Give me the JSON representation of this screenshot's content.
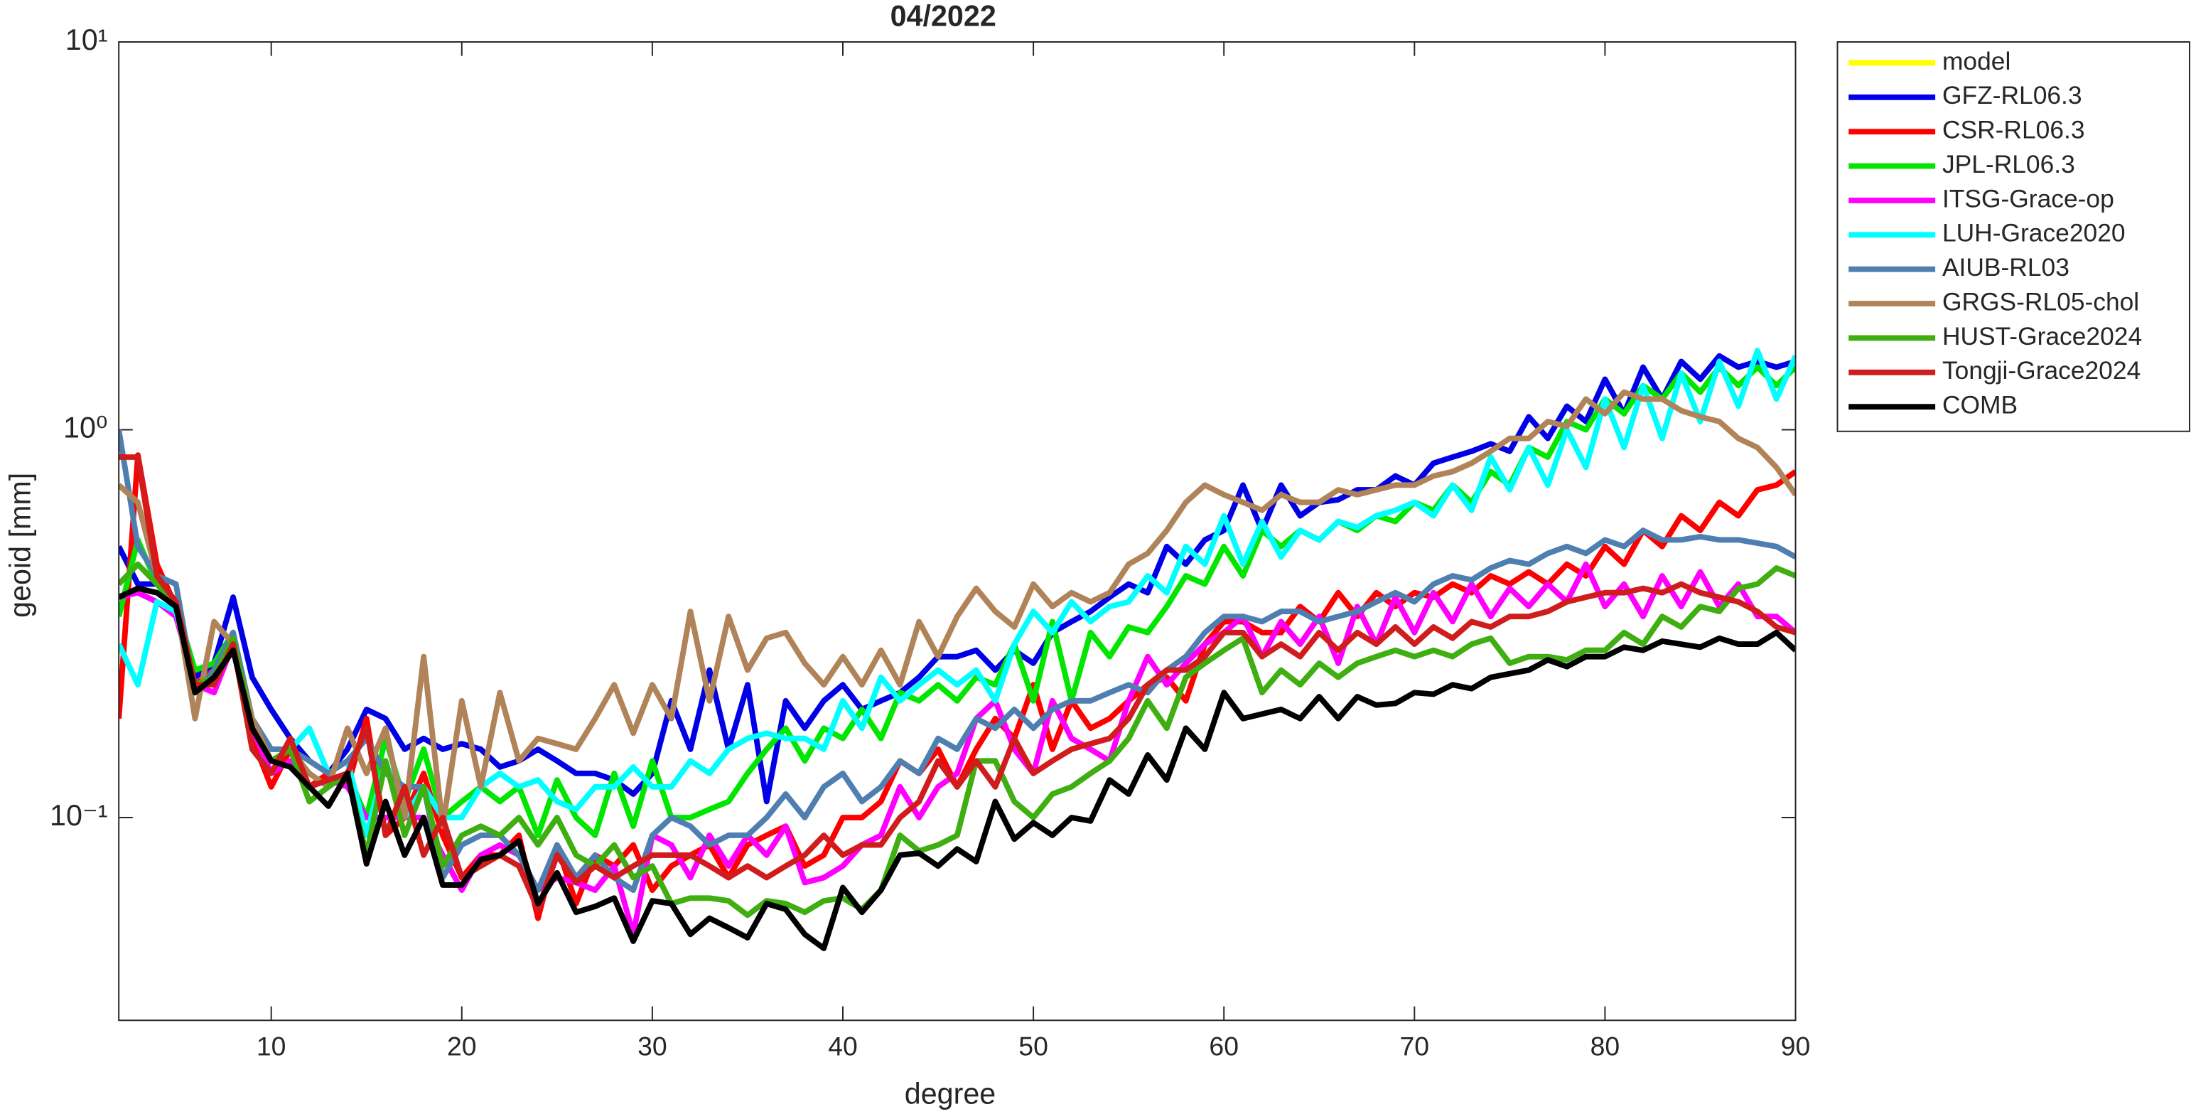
{
  "chart_data": {
    "type": "line",
    "title": "04/2022",
    "xlabel": "degree",
    "ylabel": "geoid [mm]",
    "yscale": "log",
    "legend": "northeastoutside",
    "grid": false,
    "xlim": [
      2,
      90
    ],
    "xticks": [
      10,
      20,
      30,
      40,
      50,
      60,
      70,
      80,
      90
    ],
    "ylim": [
      0.03,
      10
    ],
    "yticks": [
      {
        "value": 0.1,
        "label": "10⁻¹"
      },
      {
        "value": 1,
        "label": "10⁰"
      },
      {
        "value": 10,
        "label": "10¹"
      }
    ],
    "x": [
      2,
      3,
      4,
      5,
      6,
      7,
      8,
      9,
      10,
      11,
      12,
      13,
      14,
      15,
      16,
      17,
      18,
      19,
      20,
      21,
      22,
      23,
      24,
      25,
      26,
      27,
      28,
      29,
      30,
      31,
      32,
      33,
      34,
      35,
      36,
      37,
      38,
      39,
      40,
      41,
      42,
      43,
      44,
      45,
      46,
      47,
      48,
      49,
      50,
      51,
      52,
      53,
      54,
      55,
      56,
      57,
      58,
      59,
      60,
      61,
      62,
      63,
      64,
      65,
      66,
      67,
      68,
      69,
      70,
      71,
      72,
      73,
      74,
      75,
      76,
      77,
      78,
      79,
      80,
      81,
      82,
      83,
      84,
      85,
      86,
      87,
      88,
      89,
      90
    ],
    "series": [
      {
        "name": "model",
        "color": "#ffff00",
        "values": [
          null,
          null,
          null,
          null,
          null,
          null,
          null,
          null,
          null,
          null,
          null,
          null,
          null,
          null,
          null,
          null,
          null,
          null,
          null,
          null,
          null,
          null,
          null,
          null,
          null,
          null,
          null,
          null,
          null,
          null,
          null,
          null,
          null,
          null,
          null,
          null,
          null,
          null,
          null,
          null,
          null,
          null,
          null,
          null,
          null,
          null,
          null,
          null,
          null,
          null,
          null,
          null,
          null,
          null,
          null,
          null,
          null,
          null,
          null,
          null,
          null,
          null,
          null,
          null,
          null,
          null,
          null,
          null,
          null,
          null,
          null,
          null,
          null,
          null,
          null,
          null,
          null,
          null,
          null,
          null,
          null,
          null,
          null,
          null,
          null,
          null,
          null,
          null,
          null
        ]
      },
      {
        "name": "GFZ-RL06.3",
        "color": "#0000e6",
        "values": [
          0.5,
          0.4,
          0.4,
          0.36,
          0.23,
          0.25,
          0.37,
          0.23,
          0.19,
          0.16,
          0.14,
          0.13,
          0.15,
          0.19,
          0.18,
          0.15,
          0.16,
          0.15,
          0.155,
          0.15,
          0.135,
          0.14,
          0.15,
          0.14,
          0.13,
          0.13,
          0.125,
          0.115,
          0.13,
          0.2,
          0.15,
          0.24,
          0.15,
          0.22,
          0.11,
          0.2,
          0.17,
          0.2,
          0.22,
          0.19,
          0.2,
          0.21,
          0.23,
          0.26,
          0.26,
          0.27,
          0.24,
          0.27,
          0.25,
          0.3,
          0.32,
          0.34,
          0.37,
          0.4,
          0.38,
          0.5,
          0.45,
          0.52,
          0.55,
          0.72,
          0.55,
          0.72,
          0.6,
          0.65,
          0.66,
          0.7,
          0.7,
          0.76,
          0.72,
          0.82,
          0.85,
          0.88,
          0.92,
          0.88,
          1.08,
          0.95,
          1.15,
          1.05,
          1.35,
          1.1,
          1.45,
          1.2,
          1.5,
          1.35,
          1.55,
          1.45,
          1.5,
          1.45,
          1.5
        ]
      },
      {
        "name": "CSR-RL06.3",
        "color": "#ff0000",
        "values": [
          0.18,
          0.86,
          0.45,
          0.35,
          0.22,
          0.24,
          0.28,
          0.16,
          0.12,
          0.15,
          0.12,
          0.13,
          0.12,
          0.18,
          0.09,
          0.1,
          0.13,
          0.09,
          0.07,
          0.08,
          0.08,
          0.09,
          0.055,
          0.085,
          0.06,
          0.08,
          0.075,
          0.085,
          0.065,
          0.075,
          0.08,
          0.085,
          0.07,
          0.085,
          0.09,
          0.095,
          0.075,
          0.08,
          0.1,
          0.1,
          0.11,
          0.14,
          0.13,
          0.15,
          0.12,
          0.15,
          0.18,
          0.16,
          0.22,
          0.15,
          0.2,
          0.17,
          0.18,
          0.2,
          0.22,
          0.23,
          0.2,
          0.28,
          0.32,
          0.32,
          0.3,
          0.3,
          0.35,
          0.32,
          0.38,
          0.33,
          0.38,
          0.35,
          0.38,
          0.37,
          0.4,
          0.38,
          0.42,
          0.4,
          0.43,
          0.4,
          0.45,
          0.42,
          0.5,
          0.45,
          0.55,
          0.5,
          0.6,
          0.55,
          0.65,
          0.6,
          0.7,
          0.72,
          0.78
        ]
      },
      {
        "name": "JPL-RL06.3",
        "color": "#00e600",
        "values": [
          0.33,
          0.52,
          0.4,
          0.35,
          0.24,
          0.25,
          0.3,
          0.17,
          0.14,
          0.15,
          0.11,
          0.12,
          0.13,
          0.1,
          0.16,
          0.11,
          0.15,
          0.1,
          0.11,
          0.12,
          0.11,
          0.12,
          0.09,
          0.125,
          0.1,
          0.09,
          0.13,
          0.095,
          0.14,
          0.1,
          0.1,
          0.105,
          0.11,
          0.13,
          0.15,
          0.17,
          0.14,
          0.17,
          0.16,
          0.19,
          0.16,
          0.21,
          0.2,
          0.22,
          0.2,
          0.23,
          0.22,
          0.28,
          0.2,
          0.32,
          0.2,
          0.3,
          0.26,
          0.31,
          0.3,
          0.35,
          0.42,
          0.4,
          0.5,
          0.42,
          0.55,
          0.5,
          0.55,
          0.52,
          0.58,
          0.55,
          0.6,
          0.58,
          0.65,
          0.62,
          0.72,
          0.65,
          0.78,
          0.72,
          0.9,
          0.85,
          1.05,
          1.0,
          1.2,
          1.1,
          1.3,
          1.2,
          1.4,
          1.25,
          1.45,
          1.3,
          1.45,
          1.3,
          1.45
        ]
      },
      {
        "name": "ITSG-Grace-op",
        "color": "#ff00ff",
        "values": [
          0.37,
          0.38,
          0.36,
          0.33,
          0.22,
          0.21,
          0.28,
          0.17,
          0.13,
          0.14,
          0.12,
          0.125,
          0.12,
          0.1,
          0.1,
          0.1,
          0.1,
          0.08,
          0.065,
          0.08,
          0.085,
          0.08,
          0.065,
          0.07,
          0.068,
          0.065,
          0.075,
          0.05,
          0.09,
          0.085,
          0.07,
          0.09,
          0.075,
          0.09,
          0.08,
          0.095,
          0.068,
          0.07,
          0.075,
          0.085,
          0.09,
          0.12,
          0.1,
          0.12,
          0.13,
          0.18,
          0.2,
          0.15,
          0.13,
          0.2,
          0.16,
          0.15,
          0.14,
          0.2,
          0.26,
          0.22,
          0.25,
          0.28,
          0.3,
          0.33,
          0.26,
          0.32,
          0.28,
          0.33,
          0.25,
          0.35,
          0.28,
          0.37,
          0.3,
          0.38,
          0.32,
          0.4,
          0.33,
          0.39,
          0.35,
          0.4,
          0.36,
          0.45,
          0.35,
          0.4,
          0.33,
          0.42,
          0.35,
          0.43,
          0.35,
          0.4,
          0.33,
          0.33,
          0.3
        ]
      },
      {
        "name": "LUH-Grace2020",
        "color": "#00ffff",
        "values": [
          0.28,
          0.22,
          0.36,
          0.34,
          0.22,
          0.22,
          0.28,
          0.17,
          0.15,
          0.15,
          0.17,
          0.13,
          0.14,
          0.09,
          0.14,
          0.1,
          0.12,
          0.1,
          0.1,
          0.12,
          0.13,
          0.12,
          0.125,
          0.11,
          0.105,
          0.12,
          0.12,
          0.135,
          0.12,
          0.12,
          0.14,
          0.13,
          0.15,
          0.16,
          0.165,
          0.16,
          0.16,
          0.15,
          0.2,
          0.17,
          0.23,
          0.2,
          0.22,
          0.24,
          0.22,
          0.24,
          0.2,
          0.28,
          0.34,
          0.3,
          0.36,
          0.32,
          0.35,
          0.36,
          0.42,
          0.38,
          0.5,
          0.45,
          0.6,
          0.45,
          0.58,
          0.47,
          0.55,
          0.52,
          0.58,
          0.56,
          0.6,
          0.62,
          0.65,
          0.6,
          0.72,
          0.62,
          0.85,
          0.7,
          0.9,
          0.72,
          1.0,
          0.8,
          1.2,
          0.9,
          1.3,
          0.95,
          1.4,
          1.05,
          1.5,
          1.15,
          1.6,
          1.2,
          1.55
        ]
      },
      {
        "name": "AIUB-RL03",
        "color": "#4f7fb0",
        "values": [
          1.0,
          0.5,
          0.42,
          0.4,
          0.21,
          0.24,
          0.3,
          0.18,
          0.15,
          0.15,
          0.14,
          0.13,
          0.14,
          0.16,
          0.13,
          0.12,
          0.12,
          0.07,
          0.085,
          0.09,
          0.09,
          0.08,
          0.065,
          0.085,
          0.07,
          0.08,
          0.07,
          0.065,
          0.09,
          0.1,
          0.095,
          0.085,
          0.09,
          0.09,
          0.1,
          0.115,
          0.1,
          0.12,
          0.13,
          0.11,
          0.12,
          0.14,
          0.13,
          0.16,
          0.15,
          0.18,
          0.17,
          0.19,
          0.17,
          0.19,
          0.2,
          0.2,
          0.21,
          0.22,
          0.21,
          0.24,
          0.26,
          0.3,
          0.33,
          0.33,
          0.32,
          0.34,
          0.34,
          0.32,
          0.33,
          0.34,
          0.36,
          0.38,
          0.36,
          0.4,
          0.42,
          0.41,
          0.44,
          0.46,
          0.45,
          0.48,
          0.5,
          0.48,
          0.52,
          0.5,
          0.55,
          0.52,
          0.52,
          0.53,
          0.52,
          0.52,
          0.51,
          0.5,
          0.47
        ]
      },
      {
        "name": "GRGS-RL05-chol",
        "color": "#b08358",
        "values": [
          0.72,
          0.65,
          0.42,
          0.36,
          0.18,
          0.32,
          0.28,
          0.18,
          0.14,
          0.15,
          0.13,
          0.12,
          0.17,
          0.13,
          0.17,
          0.1,
          0.26,
          0.095,
          0.2,
          0.12,
          0.21,
          0.14,
          0.16,
          0.155,
          0.15,
          0.18,
          0.22,
          0.165,
          0.22,
          0.18,
          0.34,
          0.2,
          0.33,
          0.24,
          0.29,
          0.3,
          0.25,
          0.22,
          0.26,
          0.22,
          0.27,
          0.22,
          0.32,
          0.26,
          0.33,
          0.39,
          0.34,
          0.31,
          0.4,
          0.35,
          0.38,
          0.36,
          0.38,
          0.45,
          0.48,
          0.55,
          0.65,
          0.72,
          0.68,
          0.65,
          0.62,
          0.68,
          0.65,
          0.65,
          0.7,
          0.68,
          0.7,
          0.72,
          0.72,
          0.76,
          0.78,
          0.82,
          0.88,
          0.95,
          0.95,
          1.05,
          1.02,
          1.2,
          1.1,
          1.25,
          1.2,
          1.2,
          1.12,
          1.08,
          1.05,
          0.95,
          0.9,
          0.8,
          0.68
        ]
      },
      {
        "name": "HUST-Grace2024",
        "color": "#3fae11",
        "values": [
          0.4,
          0.45,
          0.4,
          0.36,
          0.22,
          0.23,
          0.29,
          0.17,
          0.14,
          0.15,
          0.11,
          0.12,
          0.13,
          0.08,
          0.14,
          0.09,
          0.12,
          0.075,
          0.09,
          0.095,
          0.09,
          0.1,
          0.085,
          0.1,
          0.08,
          0.075,
          0.085,
          0.07,
          0.075,
          0.06,
          0.062,
          0.062,
          0.061,
          0.056,
          0.061,
          0.06,
          0.057,
          0.061,
          0.062,
          0.058,
          0.065,
          0.09,
          0.082,
          0.085,
          0.09,
          0.14,
          0.14,
          0.11,
          0.1,
          0.115,
          0.12,
          0.13,
          0.14,
          0.16,
          0.2,
          0.17,
          0.23,
          0.25,
          0.27,
          0.29,
          0.21,
          0.24,
          0.22,
          0.25,
          0.23,
          0.25,
          0.26,
          0.27,
          0.26,
          0.27,
          0.26,
          0.28,
          0.29,
          0.25,
          0.26,
          0.26,
          0.255,
          0.27,
          0.27,
          0.3,
          0.28,
          0.33,
          0.31,
          0.35,
          0.34,
          0.39,
          0.4,
          0.44,
          0.42
        ]
      },
      {
        "name": "Tongji-Grace2024",
        "color": "#d01c1c",
        "values": [
          0.85,
          0.85,
          0.42,
          0.36,
          0.22,
          0.22,
          0.28,
          0.15,
          0.13,
          0.16,
          0.12,
          0.125,
          0.13,
          0.17,
          0.09,
          0.12,
          0.08,
          0.1,
          0.07,
          0.075,
          0.08,
          0.075,
          0.058,
          0.08,
          0.068,
          0.075,
          0.07,
          0.075,
          0.08,
          0.08,
          0.08,
          0.075,
          0.07,
          0.075,
          0.07,
          0.075,
          0.08,
          0.09,
          0.08,
          0.085,
          0.085,
          0.1,
          0.11,
          0.14,
          0.12,
          0.14,
          0.12,
          0.16,
          0.13,
          0.14,
          0.15,
          0.155,
          0.16,
          0.18,
          0.22,
          0.24,
          0.24,
          0.26,
          0.3,
          0.3,
          0.26,
          0.28,
          0.26,
          0.3,
          0.27,
          0.3,
          0.28,
          0.31,
          0.28,
          0.31,
          0.29,
          0.32,
          0.31,
          0.33,
          0.33,
          0.34,
          0.36,
          0.37,
          0.38,
          0.38,
          0.39,
          0.38,
          0.4,
          0.38,
          0.37,
          0.36,
          0.34,
          0.31,
          0.3
        ]
      },
      {
        "name": "COMB",
        "color": "#000000",
        "values": [
          0.37,
          0.39,
          0.38,
          0.35,
          0.21,
          0.23,
          0.27,
          0.17,
          0.14,
          0.135,
          0.12,
          0.107,
          0.13,
          0.076,
          0.11,
          0.08,
          0.1,
          0.067,
          0.067,
          0.078,
          0.08,
          0.087,
          0.06,
          0.072,
          0.057,
          0.059,
          0.062,
          0.048,
          0.061,
          0.06,
          0.05,
          0.055,
          0.052,
          0.049,
          0.06,
          0.058,
          0.05,
          0.046,
          0.066,
          0.057,
          0.065,
          0.08,
          0.081,
          0.075,
          0.083,
          0.077,
          0.11,
          0.088,
          0.097,
          0.09,
          0.1,
          0.098,
          0.125,
          0.115,
          0.145,
          0.125,
          0.17,
          0.15,
          0.21,
          0.18,
          0.185,
          0.19,
          0.18,
          0.205,
          0.18,
          0.205,
          0.195,
          0.197,
          0.21,
          0.208,
          0.22,
          0.215,
          0.23,
          0.235,
          0.24,
          0.255,
          0.245,
          0.26,
          0.26,
          0.275,
          0.27,
          0.285,
          0.28,
          0.275,
          0.29,
          0.28,
          0.28,
          0.3,
          0.27
        ]
      }
    ]
  }
}
